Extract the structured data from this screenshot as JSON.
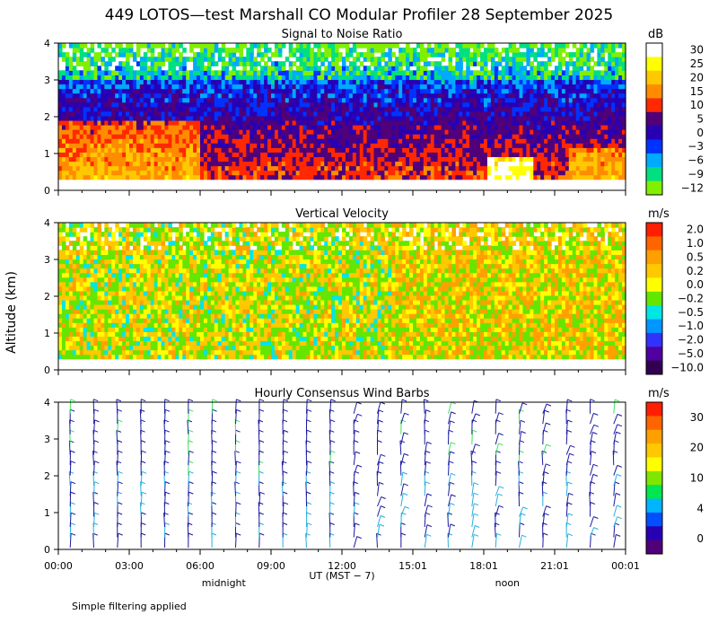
{
  "figure_title": "449 LOTOS—test Marshall CO Modular Profiler 28 September 2025",
  "footnote": "Simple filtering applied",
  "colors": {
    "background": "#ffffff",
    "axis": "#000000",
    "wind_barb_low": "#1a1aa0",
    "wind_barb_mid": "#28b0e0",
    "wind_barb_green": "#40e060"
  },
  "chart_data": [
    {
      "type": "heatmap",
      "title": "Signal to Noise Ratio",
      "ylabel": "Altitude (km)",
      "ylim": [
        0,
        4
      ],
      "yticks": [
        "0",
        "1",
        "2",
        "3",
        "4"
      ],
      "xlim_hours": [
        0,
        24
      ],
      "colorbar": {
        "unit": "dB",
        "labels": [
          "30",
          "25",
          "20",
          "15",
          "10",
          "5",
          "0",
          "−3",
          "−6",
          "−9",
          "−12"
        ],
        "colors": [
          "#ffffff",
          "#ffff00",
          "#ffc800",
          "#ff8c00",
          "#ff2800",
          "#500078",
          "#2800b4",
          "#0032ff",
          "#00aaff",
          "#00e080",
          "#80f000"
        ]
      }
    },
    {
      "type": "heatmap",
      "title": "Vertical Velocity",
      "ylabel": "Altitude (km)",
      "ylim": [
        0,
        4
      ],
      "yticks": [
        "0",
        "1",
        "2",
        "3",
        "4"
      ],
      "xlim_hours": [
        0,
        24
      ],
      "colorbar": {
        "unit": "m/s",
        "labels": [
          "2.0",
          "1.0",
          "0.5",
          "0.2",
          "0.0",
          "−0.2",
          "−0.5",
          "−1.0",
          "−2.0",
          "−5.0",
          "−10.0"
        ],
        "colors": [
          "#ff1e00",
          "#ff6400",
          "#ffa000",
          "#ffc800",
          "#ffff00",
          "#64e600",
          "#00e6e6",
          "#0096ff",
          "#3232ff",
          "#5000a0",
          "#320050"
        ]
      }
    },
    {
      "type": "wind_barbs",
      "title": "Hourly Consensus Wind Barbs",
      "ylabel": "Altitude (km)",
      "ylim": [
        0,
        4
      ],
      "yticks": [
        "0",
        "1",
        "2",
        "3",
        "4"
      ],
      "xlim_hours": [
        0,
        24
      ],
      "xticks": [
        "00:00",
        "03:00",
        "06:00",
        "09:00",
        "12:00",
        "15:01",
        "18:01",
        "21:01",
        "00:01"
      ],
      "xlabel": "UT  (MST − 7)",
      "x_annotations": [
        {
          "label": "midnight",
          "hour": 7
        },
        {
          "label": "noon",
          "hour": 19
        }
      ],
      "colorbar": {
        "unit": "m/s",
        "labels": [
          "30",
          "20",
          "10",
          "4",
          "0"
        ],
        "colors": [
          "#ff1e00",
          "#ff6400",
          "#ffa000",
          "#ffc800",
          "#ffff00",
          "#80e600",
          "#00e650",
          "#00b4ff",
          "#0050ff",
          "#2800b4",
          "#500078"
        ]
      }
    }
  ]
}
